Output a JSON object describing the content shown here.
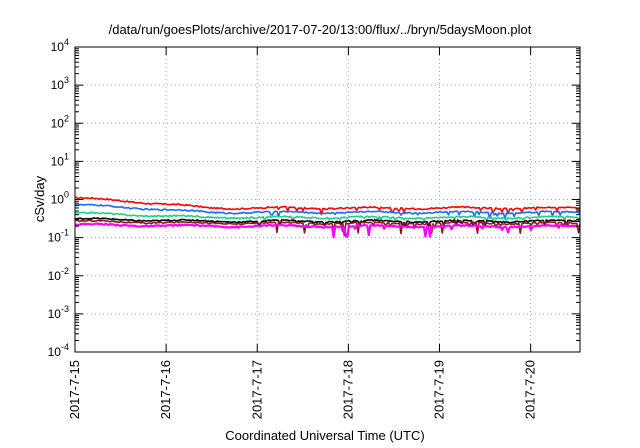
{
  "chart_data": {
    "type": "line",
    "title": "/data/run/goesPlots/archive/2017-07-20/13:00/flux/../bryn/5daysMoon.plot",
    "xlabel": "Coordinated Universal Time (UTC)",
    "ylabel": "cSv/day",
    "yscale": "log",
    "ylim_exponents": [
      -4,
      4
    ],
    "y_ticks": [
      {
        "base": "10",
        "exp": "-4"
      },
      {
        "base": "10",
        "exp": "-3"
      },
      {
        "base": "10",
        "exp": "-2"
      },
      {
        "base": "10",
        "exp": "-1"
      },
      {
        "base": "10",
        "exp": "0"
      },
      {
        "base": "10",
        "exp": "1"
      },
      {
        "base": "10",
        "exp": "2"
      },
      {
        "base": "10",
        "exp": "3"
      },
      {
        "base": "10",
        "exp": "4"
      }
    ],
    "x_ticks": [
      "2017-7-15",
      "2017-7-16",
      "2017-7-17",
      "2017-7-18",
      "2017-7-19",
      "2017-7-20"
    ],
    "xlim": [
      "2017-07-15 00:00",
      "2017-07-20 13:00"
    ],
    "grid": true,
    "series": [
      {
        "color": "#ff0000",
        "start": 1.1,
        "level": 0.6
      },
      {
        "color": "#1e6bff",
        "start": 0.72,
        "level": 0.46
      },
      {
        "color": "#22cc88",
        "start": 0.44,
        "level": 0.34
      },
      {
        "color": "#000000",
        "start": 0.31,
        "level": 0.27
      },
      {
        "color": "#8b1a1a",
        "start": 0.27,
        "level": 0.24
      },
      {
        "color": "#ff00ff",
        "start": 0.22,
        "level": 0.2
      }
    ]
  }
}
